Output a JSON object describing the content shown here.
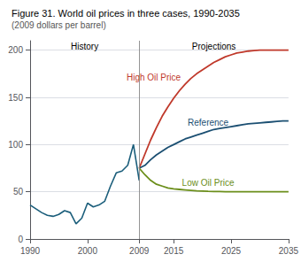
{
  "chart_data": {
    "type": "line",
    "title": "Figure 31. World oil prices in three cases, 1990-2035",
    "subtitle": "(2009 dollars per barrel)",
    "annotations": [
      "History",
      "Projections"
    ],
    "divider": 2009,
    "xlim": [
      1990,
      2035
    ],
    "ylim": [
      0,
      210
    ],
    "xticks": [
      1990,
      2000,
      2009,
      2015,
      2025,
      2035
    ],
    "yticks": [
      0,
      50,
      100,
      150,
      200
    ],
    "grid": true,
    "series": [
      {
        "color": "#1b5e7b",
        "x": [
          1990,
          1991,
          1992,
          1993,
          1994,
          1995,
          1996,
          1997,
          1998,
          1999,
          2000,
          2001,
          2002,
          2003,
          2004,
          2005,
          2006,
          2007,
          2008,
          2009
        ],
        "values": [
          36,
          32,
          28,
          25,
          24,
          26,
          30,
          28,
          16,
          22,
          38,
          34,
          36,
          40,
          56,
          70,
          72,
          78,
          100,
          62
        ]
      },
      {
        "name": "High Oil Price",
        "color": "#c0392b",
        "x": [
          2009,
          2010,
          2011,
          2012,
          2013,
          2014,
          2015,
          2016,
          2017,
          2018,
          2019,
          2020,
          2021,
          2022,
          2023,
          2024,
          2025,
          2026,
          2027,
          2028,
          2029,
          2030,
          2031,
          2032,
          2033,
          2034,
          2035
        ],
        "values": [
          75,
          90,
          105,
          118,
          130,
          140,
          149,
          157,
          164,
          170,
          175,
          179,
          183,
          187,
          190,
          193,
          195,
          197,
          198,
          199,
          199.5,
          200,
          200,
          200,
          200,
          200,
          200
        ]
      },
      {
        "name": "Reference",
        "color": "#1b4f72",
        "x": [
          2009,
          2010,
          2011,
          2012,
          2013,
          2014,
          2015,
          2016,
          2017,
          2018,
          2019,
          2020,
          2021,
          2022,
          2023,
          2024,
          2025,
          2026,
          2027,
          2028,
          2029,
          2030,
          2031,
          2032,
          2033,
          2034,
          2035
        ],
        "values": [
          75,
          78,
          84,
          89,
          93,
          97,
          100,
          103,
          106,
          108,
          110,
          112,
          114,
          116,
          117,
          118,
          119,
          120,
          121,
          122,
          122.5,
          123,
          123.5,
          124,
          124.5,
          125,
          125
        ]
      },
      {
        "name": "Low Oil Price",
        "color": "#6b8e1a",
        "x": [
          2009,
          2010,
          2011,
          2012,
          2013,
          2014,
          2015,
          2016,
          2017,
          2018,
          2019,
          2020,
          2021,
          2022,
          2023,
          2024,
          2025,
          2026,
          2027,
          2028,
          2029,
          2030,
          2031,
          2032,
          2033,
          2034,
          2035
        ],
        "values": [
          75,
          68,
          62,
          58,
          56,
          54,
          53,
          52.5,
          52,
          51.5,
          51,
          50.8,
          50.5,
          50.3,
          50.2,
          50.1,
          50,
          50,
          50,
          50,
          50,
          50,
          50,
          50,
          50,
          50,
          50
        ]
      }
    ]
  }
}
